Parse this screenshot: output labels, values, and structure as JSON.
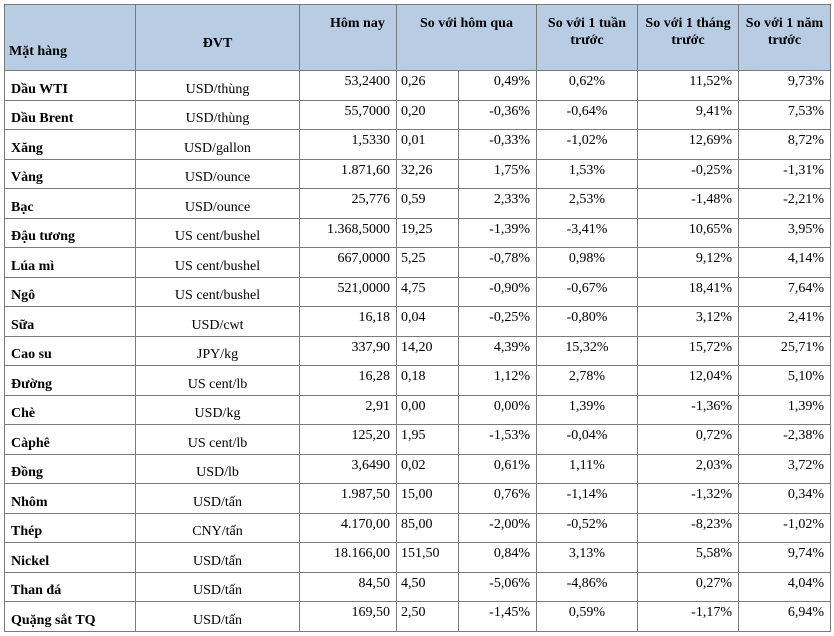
{
  "headers": {
    "item": "Mặt hàng",
    "unit": "ĐVT",
    "today": "Hôm nay",
    "vs_yesterday": "So với hôm qua",
    "vs_week": "So với 1 tuần trước",
    "vs_month": "So với 1 tháng trước",
    "vs_year": "So với 1 năm trước"
  },
  "rows": [
    {
      "item": "Dầu WTI",
      "unit": "USD/thùng",
      "today": "53,2400",
      "chg": "0,26",
      "chg_pct": "0,49%",
      "week": "0,62%",
      "month": "11,52%",
      "year": "9,73%"
    },
    {
      "item": "Dầu Brent",
      "unit": "USD/thùng",
      "today": "55,7000",
      "chg": "0,20",
      "chg_pct": "-0,36%",
      "week": "-0,64%",
      "month": "9,41%",
      "year": "7,53%"
    },
    {
      "item": "Xăng",
      "unit": "USD/gallon",
      "today": "1,5330",
      "chg": "0,01",
      "chg_pct": "-0,33%",
      "week": "-1,02%",
      "month": "12,69%",
      "year": "8,72%"
    },
    {
      "item": "Vàng",
      "unit": "USD/ounce",
      "today": "1.871,60",
      "chg": "32,26",
      "chg_pct": "1,75%",
      "week": "1,53%",
      "month": "-0,25%",
      "year": "-1,31%"
    },
    {
      "item": "Bạc",
      "unit": "USD/ounce",
      "today": "25,776",
      "chg": "0,59",
      "chg_pct": "2,33%",
      "week": "2,53%",
      "month": "-1,48%",
      "year": "-2,21%"
    },
    {
      "item": "Đậu tương",
      "unit": "US cent/bushel",
      "today": "1.368,5000",
      "chg": "19,25",
      "chg_pct": "-1,39%",
      "week": "-3,41%",
      "month": "10,65%",
      "year": "3,95%"
    },
    {
      "item": "Lúa mì",
      "unit": "US cent/bushel",
      "today": "667,0000",
      "chg": "5,25",
      "chg_pct": "-0,78%",
      "week": "0,98%",
      "month": "9,12%",
      "year": "4,14%"
    },
    {
      "item": "Ngô",
      "unit": "US cent/bushel",
      "today": "521,0000",
      "chg": "4,75",
      "chg_pct": "-0,90%",
      "week": "-0,67%",
      "month": "18,41%",
      "year": "7,64%"
    },
    {
      "item": "Sữa",
      "unit": "USD/cwt",
      "today": "16,18",
      "chg": "0,04",
      "chg_pct": "-0,25%",
      "week": "-0,80%",
      "month": "3,12%",
      "year": "2,41%"
    },
    {
      "item": "Cao su",
      "unit": "JPY/kg",
      "today": "337,90",
      "chg": "14,20",
      "chg_pct": "4,39%",
      "week": "15,32%",
      "month": "15,72%",
      "year": "25,71%"
    },
    {
      "item": "Đường",
      "unit": "US cent/lb",
      "today": "16,28",
      "chg": "0,18",
      "chg_pct": "1,12%",
      "week": "2,78%",
      "month": "12,04%",
      "year": "5,10%"
    },
    {
      "item": "Chè",
      "unit": "USD/kg",
      "today": "2,91",
      "chg": "0,00",
      "chg_pct": "0,00%",
      "week": "1,39%",
      "month": "-1,36%",
      "year": "1,39%"
    },
    {
      "item": "Càphê",
      "unit": "US cent/lb",
      "today": "125,20",
      "chg": "1,95",
      "chg_pct": "-1,53%",
      "week": "-0,04%",
      "month": "0,72%",
      "year": "-2,38%"
    },
    {
      "item": "Đồng",
      "unit": "USD/lb",
      "today": "3,6490",
      "chg": "0,02",
      "chg_pct": "0,61%",
      "week": "1,11%",
      "month": "2,03%",
      "year": "3,72%"
    },
    {
      "item": "Nhôm",
      "unit": "USD/tấn",
      "today": "1.987,50",
      "chg": "15,00",
      "chg_pct": "0,76%",
      "week": "-1,14%",
      "month": "-1,32%",
      "year": "0,34%"
    },
    {
      "item": "Thép",
      "unit": "CNY/tấn",
      "today": "4.170,00",
      "chg": "85,00",
      "chg_pct": "-2,00%",
      "week": "-0,52%",
      "month": "-8,23%",
      "year": "-1,02%"
    },
    {
      "item": "Nickel",
      "unit": "USD/tấn",
      "today": "18.166,00",
      "chg": "151,50",
      "chg_pct": "0,84%",
      "week": "3,13%",
      "month": "5,58%",
      "year": "9,74%"
    },
    {
      "item": "Than đá",
      "unit": "USD/tấn",
      "today": "84,50",
      "chg": "4,50",
      "chg_pct": "-5,06%",
      "week": "-4,86%",
      "month": "0,27%",
      "year": "4,04%"
    },
    {
      "item": "Quặng sắt TQ",
      "unit": "USD/tấn",
      "today": "169,50",
      "chg": "2,50",
      "chg_pct": "-1,45%",
      "week": "0,59%",
      "month": "-1,17%",
      "year": "6,94%"
    }
  ],
  "colors": {
    "header_bg": "#b8cce4",
    "border": "#7a7a7a"
  }
}
